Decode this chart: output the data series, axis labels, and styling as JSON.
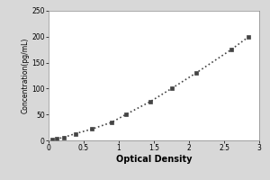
{
  "xlabel": "Optical Density",
  "ylabel": "Concentration(pg/mL)",
  "xlim": [
    0,
    3
  ],
  "ylim": [
    0,
    250
  ],
  "xticks": [
    0,
    0.5,
    1,
    1.5,
    2,
    2.5,
    3
  ],
  "yticks": [
    0,
    50,
    100,
    150,
    200,
    250
  ],
  "x_data": [
    0.05,
    0.12,
    0.22,
    0.38,
    0.62,
    0.9,
    1.1,
    1.45,
    1.75,
    2.1,
    2.6,
    2.85
  ],
  "y_data": [
    1,
    3,
    6,
    13,
    22,
    35,
    50,
    75,
    100,
    130,
    175,
    200
  ],
  "line_color": "#444444",
  "marker": "s",
  "marker_size": 2.5,
  "linestyle": ":",
  "linewidth": 1.2,
  "background_color": "#d8d8d8",
  "plot_bg_color": "#ffffff",
  "tick_fontsize": 5.5,
  "xlabel_fontsize": 7,
  "ylabel_fontsize": 5.5,
  "xlabel_fontweight": "bold",
  "ylabel_fontweight": "normal"
}
